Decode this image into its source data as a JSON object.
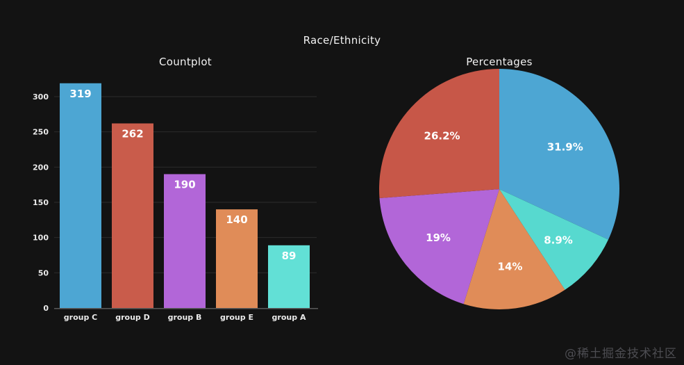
{
  "page": {
    "suptitle": "Race/Ethnicity",
    "watermark": "@稀土掘金技术社区",
    "background": "#131313",
    "text_color": "#f2f2f2"
  },
  "chart_data": [
    {
      "type": "bar",
      "title": "Countplot",
      "categories": [
        "group C",
        "group D",
        "group B",
        "group E",
        "group A"
      ],
      "values": [
        319,
        262,
        190,
        140,
        89
      ],
      "value_labels": [
        "319",
        "262",
        "190",
        "140",
        "89"
      ],
      "bar_colors": [
        "#4da6d3",
        "#c95c4b",
        "#b266d8",
        "#e08c58",
        "#62e0d6"
      ],
      "xlabel": "",
      "ylabel": "",
      "ylim": [
        0,
        335
      ],
      "yticks": [
        0,
        50,
        100,
        150,
        200,
        250,
        300
      ],
      "grid": true,
      "grid_color": "#2c2c2c",
      "axis_line_color": "#5a5a5a",
      "tick_label_color": "#eaeaea",
      "value_label_color": "#ffffff"
    },
    {
      "type": "pie",
      "title": "Percentages",
      "values": [
        31.9,
        8.9,
        14,
        19,
        26.2
      ],
      "labels": [
        "31.9%",
        "8.9%",
        "14%",
        "19%",
        "26.2%"
      ],
      "colors": [
        "#4da6d3",
        "#57d9cf",
        "#e08c58",
        "#b266d8",
        "#c75748"
      ],
      "start_angle": 90,
      "direction": "clockwise",
      "label_distance": 0.65,
      "label_color": "#ffffff",
      "legend": "none"
    }
  ]
}
